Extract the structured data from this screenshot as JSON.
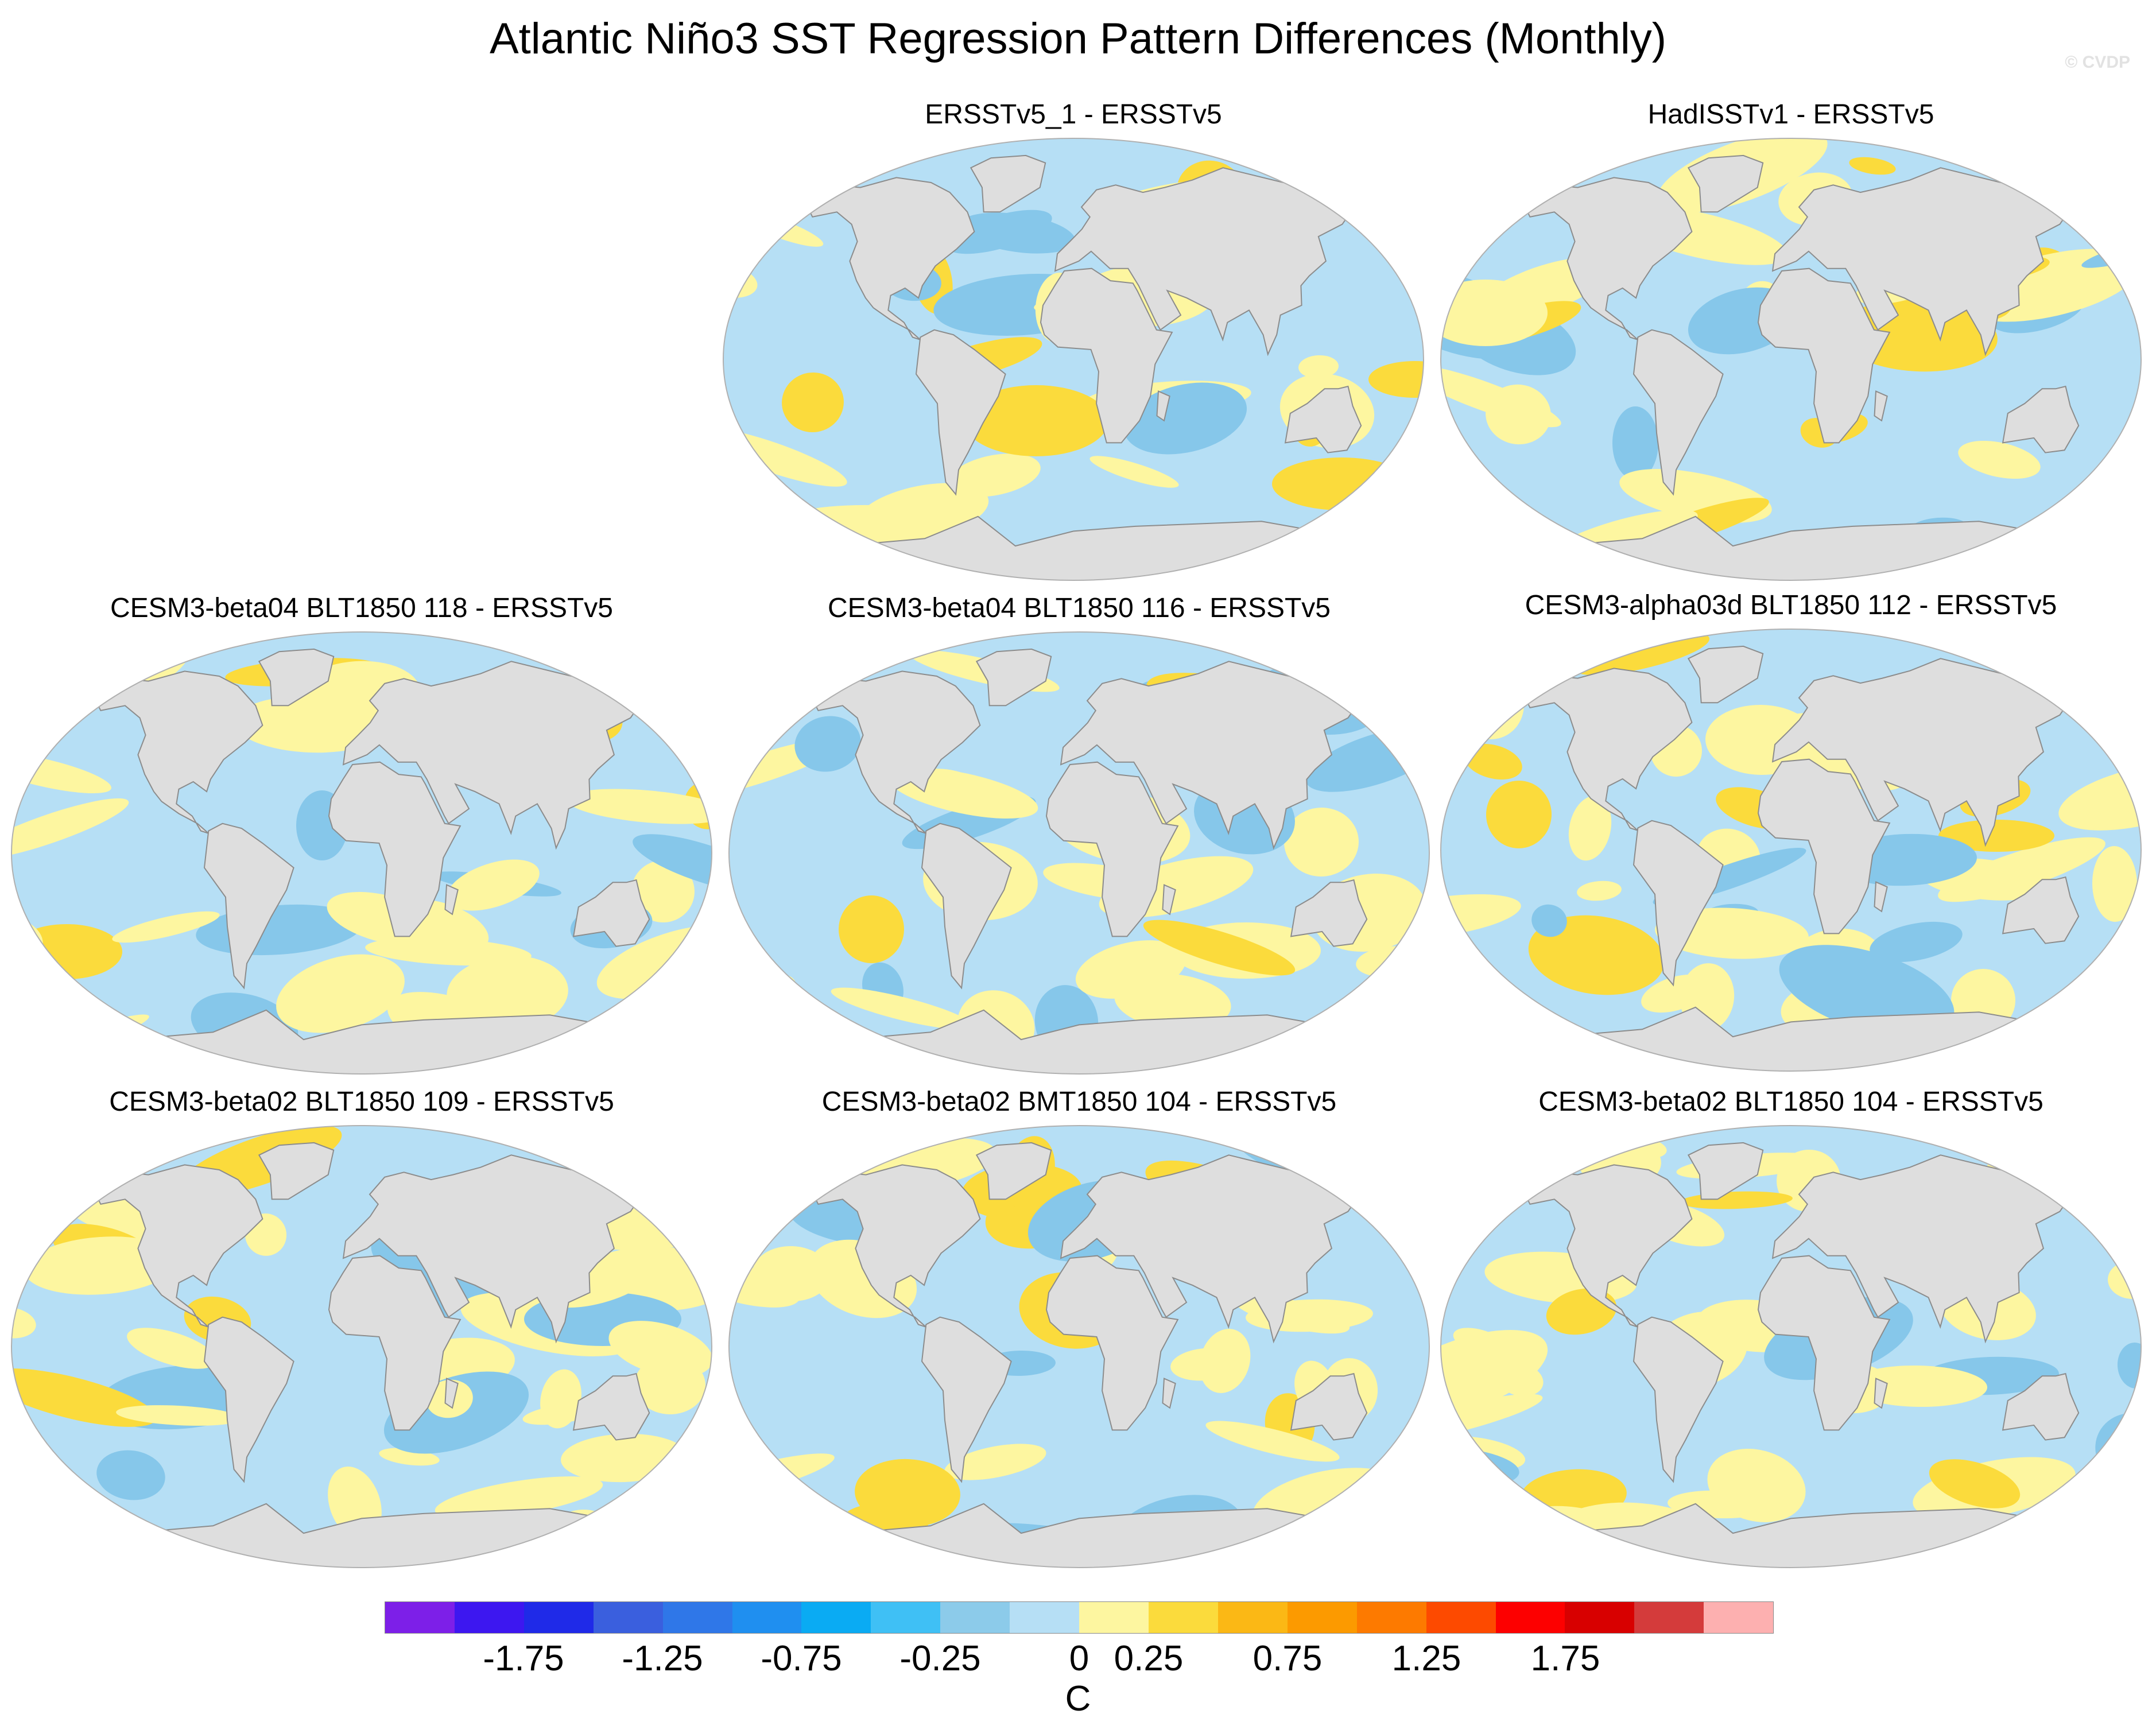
{
  "title": "Atlantic Niño3 SST Regression Pattern Differences (Monthly)",
  "watermark": "© CVDP",
  "colors": {
    "land": "#dedede",
    "coast": "#8c8c8c",
    "ocean_neg_small": "#b6dff5",
    "ocean_neg_mid": "#86c7ea",
    "ocean_pos_small": "#fdf6a0",
    "ocean_pos_mid": "#fbdb3c"
  },
  "panels": [
    {
      "title": "ERSSTv5_1 - ERSSTv5"
    },
    {
      "title": "HadISSTv1 - ERSSTv5"
    },
    {
      "title": "CESM3-beta04 BLT1850 118 - ERSSTv5"
    },
    {
      "title": "CESM3-beta04 BLT1850 116 - ERSSTv5"
    },
    {
      "title": "CESM3-alpha03d BLT1850 112 - ERSSTv5"
    },
    {
      "title": "CESM3-beta02 BLT1850 109 - ERSSTv5"
    },
    {
      "title": "CESM3-beta02 BMT1850 104 - ERSSTv5"
    },
    {
      "title": "CESM3-beta02 BLT1850 104 - ERSSTv5"
    }
  ],
  "colorbar": {
    "units": "C",
    "colors": [
      "#7d1fe8",
      "#3d17f0",
      "#1f2ae8",
      "#3a5fde",
      "#2f77e8",
      "#1f8ff0",
      "#0aabf3",
      "#3fc0f5",
      "#8ccbea",
      "#b6dff5",
      "#fdf6a0",
      "#fbdb3c",
      "#fbb815",
      "#fc9a00",
      "#fd7a00",
      "#fd4a00",
      "#fd0000",
      "#d80000",
      "#d43b3b",
      "#fdb0b0"
    ],
    "labels": [
      "-1.75",
      "-1.25",
      "-0.75",
      "-0.25",
      "0",
      "0.25",
      "0.75",
      "1.25",
      "1.75"
    ]
  }
}
